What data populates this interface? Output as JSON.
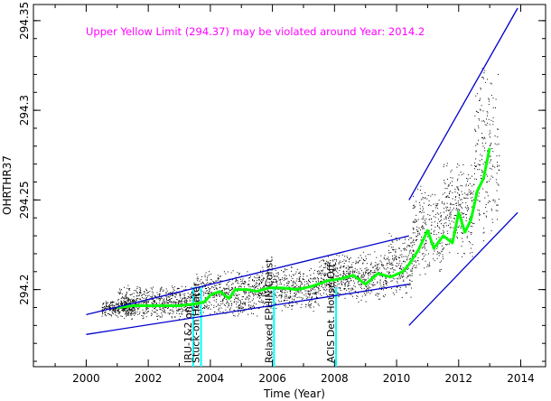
{
  "chart_data": {
    "type": "scatter",
    "title": "",
    "xlabel": "Time (Year)",
    "ylabel": "OHRTHR37",
    "xlim": [
      1998.3,
      2014.8
    ],
    "ylim": [
      294.157,
      294.359
    ],
    "x_ticks": [
      2000,
      2002,
      2004,
      2006,
      2008,
      2010,
      2012,
      2014
    ],
    "x_tick_labels": [
      "2000",
      "2002",
      "2004",
      "2006",
      "2008",
      "2010",
      "2012",
      "2014"
    ],
    "y_ticks": [
      294.2,
      294.25,
      294.3,
      294.35
    ],
    "y_tick_labels": [
      "294.2",
      "294.25",
      "294.3",
      "294.35"
    ],
    "grid": false,
    "annotation": "Upper Yellow  Limit (294.37) may be violated around Year: 2014.2",
    "colors": {
      "data_points": "#000000",
      "trend": "#00ff00",
      "envelope": "#0000cc",
      "events": "#00ffff",
      "annotation": "#ff00ff"
    },
    "data_bands": [
      {
        "x0": 2000.5,
        "x1": 2001.6,
        "ymin": 294.185,
        "ymax": 294.195
      },
      {
        "x0": 2001.0,
        "x1": 2003.5,
        "ymin": 294.183,
        "ymax": 294.203
      },
      {
        "x0": 2003.5,
        "x1": 2005.5,
        "ymin": 294.184,
        "ymax": 294.212
      },
      {
        "x0": 2005.5,
        "x1": 2007.5,
        "ymin": 294.187,
        "ymax": 294.214
      },
      {
        "x0": 2007.5,
        "x1": 2009.7,
        "ymin": 294.193,
        "ymax": 294.222
      },
      {
        "x0": 2009.7,
        "x1": 2010.5,
        "ymin": 294.195,
        "ymax": 294.232
      },
      {
        "x0": 2010.5,
        "x1": 2011.5,
        "ymin": 294.205,
        "ymax": 294.26
      },
      {
        "x0": 2011.5,
        "x1": 2012.5,
        "ymin": 294.215,
        "ymax": 294.275
      },
      {
        "x0": 2012.5,
        "x1": 2013.3,
        "ymin": 294.22,
        "ymax": 294.33
      }
    ],
    "series": [
      {
        "type": "line",
        "x": [
          2001.0,
          2001.5,
          2002.0,
          2002.5,
          2003.0,
          2003.5,
          2003.8,
          2004.0,
          2004.3,
          2004.6,
          2004.8,
          2005.2,
          2005.5,
          2005.9,
          2006.3,
          2006.8,
          2007.3,
          2007.8,
          2008.2,
          2008.6,
          2009.0,
          2009.4,
          2009.8,
          2010.2,
          2010.4,
          2010.7,
          2011.0,
          2011.2,
          2011.5,
          2011.8,
          2012.0,
          2012.2,
          2012.4,
          2012.6,
          2012.8,
          2013.0
        ],
        "y": [
          294.19,
          294.191,
          294.191,
          294.191,
          294.191,
          294.192,
          294.193,
          294.197,
          294.199,
          294.195,
          294.2,
          294.2,
          294.199,
          294.201,
          294.201,
          294.2,
          294.202,
          294.205,
          294.206,
          294.208,
          294.203,
          294.209,
          294.207,
          294.21,
          294.214,
          294.222,
          294.233,
          294.223,
          294.23,
          294.226,
          294.243,
          294.232,
          294.239,
          294.255,
          294.262,
          294.279
        ]
      },
      {
        "type": "line",
        "x": [
          2000.0,
          2010.4
        ],
        "y": [
          294.186,
          294.23
        ]
      },
      {
        "type": "line",
        "x": [
          2000.0,
          2010.4
        ],
        "y": [
          294.175,
          294.203
        ]
      },
      {
        "type": "line",
        "x": [
          2010.4,
          2013.9
        ],
        "y": [
          294.25,
          294.357
        ]
      },
      {
        "type": "line",
        "x": [
          2010.4,
          2013.9
        ],
        "y": [
          294.18,
          294.243
        ]
      }
    ],
    "events": [
      {
        "x": 2003.45,
        "label": "IRU-1&2 on"
      },
      {
        "x": 2003.7,
        "label": "Stuck-on Heater"
      },
      {
        "x": 2006.05,
        "label": "Relaxed EPHIN Const."
      },
      {
        "x": 2008.05,
        "label": "ACIS Det. House Off"
      }
    ]
  }
}
